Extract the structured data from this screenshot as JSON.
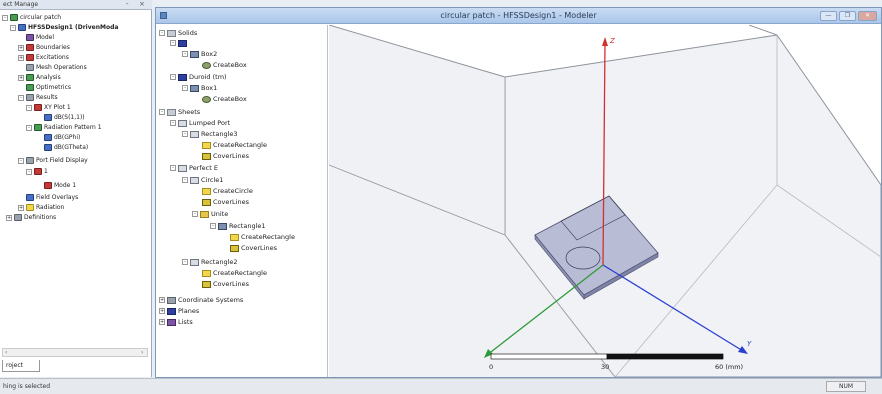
{
  "project_manager": {
    "title": "ect Manage",
    "tree": [
      {
        "label": "circular patch",
        "icon": "project-icon"
      },
      {
        "label": "HFSSDesign1 (DrivenModa",
        "icon": "design-icon"
      },
      {
        "label": "Model",
        "icon": "model-icon"
      },
      {
        "label": "Boundaries",
        "icon": "boundaries-icon"
      },
      {
        "label": "Excitations",
        "icon": "excitations-icon"
      },
      {
        "label": "Mesh Operations",
        "icon": "mesh-icon"
      },
      {
        "label": "Analysis",
        "icon": "analysis-icon"
      },
      {
        "label": "Optimetrics",
        "icon": "optimetrics-icon"
      },
      {
        "label": "Results",
        "icon": "results-icon"
      },
      {
        "label": "XY Plot 1",
        "icon": "xyplot-icon"
      },
      {
        "label": "dB(S(1,1))",
        "icon": "trace-icon"
      },
      {
        "label": "Radiation Pattern 1",
        "icon": "radiation-pattern-icon"
      },
      {
        "label": "dB(GPhi)",
        "icon": "trace-icon"
      },
      {
        "label": "dB(GTheta)",
        "icon": "trace-icon"
      },
      {
        "label": "Port Field Display",
        "icon": "port-field-icon"
      },
      {
        "label": "1",
        "icon": "port-icon"
      },
      {
        "label": "Mode 1",
        "icon": "mode-icon"
      },
      {
        "label": "Field Overlays",
        "icon": "field-overlays-icon"
      },
      {
        "label": "Radiation",
        "icon": "radiation-icon"
      },
      {
        "label": "Definitions",
        "icon": "definitions-icon"
      }
    ],
    "tab_label": "roject"
  },
  "status": {
    "text": "hing is selected",
    "num": "NUM"
  },
  "modeler": {
    "title": "circular patch - HFSSDesign1 - Modeler",
    "tree": [
      {
        "label": "Solids"
      },
      {
        "label": ""
      },
      {
        "label": "Box2"
      },
      {
        "label": "CreateBox"
      },
      {
        "label": "Duroid (tm)"
      },
      {
        "label": "Box1"
      },
      {
        "label": "CreateBox"
      },
      {
        "label": "Sheets"
      },
      {
        "label": "Lumped Port"
      },
      {
        "label": "Rectangle3"
      },
      {
        "label": "CreateRectangle"
      },
      {
        "label": "CoverLines"
      },
      {
        "label": "Perfect E"
      },
      {
        "label": "Circle1"
      },
      {
        "label": "CreateCircle"
      },
      {
        "label": "CoverLines"
      },
      {
        "label": "Unite"
      },
      {
        "label": "Rectangle1"
      },
      {
        "label": "CreateRectangle"
      },
      {
        "label": "CoverLines"
      },
      {
        "label": "Rectangle2"
      },
      {
        "label": "CreateRectangle"
      },
      {
        "label": "CoverLines"
      },
      {
        "label": "Coordinate Systems"
      },
      {
        "label": "Planes"
      },
      {
        "label": "Lists"
      }
    ]
  },
  "viewport": {
    "axes": {
      "z_label": "Z",
      "y_label": "Y"
    },
    "ruler": {
      "labels": [
        "0",
        "30",
        "60 (mm)"
      ]
    },
    "colors": {
      "z_axis": "#d23030",
      "y_axis": "#2b3fd0",
      "x_axis": "#2e9b3a",
      "box": "#8e939b",
      "substrate": "#a6a9c8"
    }
  }
}
